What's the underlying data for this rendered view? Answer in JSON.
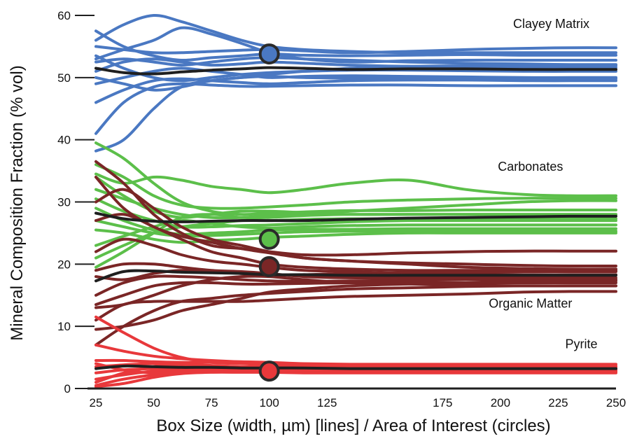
{
  "chart_data": {
    "type": "line",
    "title": "",
    "xlabel": "Box Size (width, µm) [lines] / Area of Interest (circles)",
    "ylabel": "Mineral Composition Fraction (% vol)",
    "xlim": [
      25,
      250
    ],
    "ylim": [
      0,
      60
    ],
    "xticks": [
      25,
      50,
      75,
      100,
      125,
      175,
      200,
      225,
      250
    ],
    "yticks": [
      0,
      10,
      20,
      30,
      40,
      50,
      60
    ],
    "x_samples": [
      25,
      37,
      50,
      62,
      75,
      88,
      100,
      115,
      135,
      160,
      185,
      210,
      230,
      250
    ],
    "colors": {
      "Clayey Matrix": "#4a78c2",
      "Carbonates": "#5cbf4a",
      "Organic Matter": "#7a2626",
      "Pyrite": "#e8383b",
      "mean": "#1f1f1f",
      "axis": "#1f1f1f"
    },
    "groups": [
      {
        "name": "Clayey Matrix",
        "label_x": 222,
        "label_y": 58,
        "circle": {
          "x": 100,
          "y": 53.8
        },
        "mean": [
          51.5,
          50.8,
          50.6,
          50.9,
          51.2,
          51.4,
          51.6,
          51.5,
          51.3,
          51.4,
          51.4,
          51.3,
          51.3,
          51.3
        ],
        "lines": [
          [
            57.5,
            55.0,
            53.5,
            52.8,
            53.2,
            53.5,
            53.8,
            53.6,
            53.5,
            53.6,
            53.7,
            53.6,
            53.6,
            53.6
          ],
          [
            55.0,
            54.5,
            54.0,
            54.0,
            54.2,
            54.4,
            54.5,
            54.3,
            54.0,
            54.2,
            54.5,
            54.7,
            54.8,
            54.8
          ],
          [
            53.0,
            54.5,
            56.0,
            58.0,
            57.0,
            55.5,
            54.0,
            53.0,
            52.5,
            52.7,
            52.8,
            52.8,
            52.8,
            52.8
          ],
          [
            52.5,
            53.0,
            52.5,
            52.0,
            52.5,
            53.0,
            53.2,
            53.0,
            52.8,
            52.5,
            52.3,
            52.2,
            52.1,
            52.1
          ],
          [
            51.0,
            52.5,
            53.0,
            52.5,
            52.0,
            52.2,
            52.5,
            52.3,
            52.0,
            51.8,
            51.7,
            51.6,
            51.6,
            51.6
          ],
          [
            49.0,
            50.0,
            51.0,
            51.5,
            51.0,
            50.5,
            50.0,
            50.2,
            50.3,
            50.2,
            50.1,
            50.0,
            50.0,
            50.0
          ],
          [
            46.0,
            48.0,
            49.5,
            49.8,
            49.5,
            49.2,
            49.0,
            49.2,
            49.5,
            49.6,
            49.6,
            49.5,
            49.5,
            49.5
          ],
          [
            41.0,
            46.0,
            48.5,
            49.0,
            48.8,
            48.6,
            48.6,
            48.7,
            48.8,
            48.8,
            48.7,
            48.7,
            48.7,
            48.7
          ],
          [
            38.2,
            40.0,
            45.0,
            48.5,
            49.5,
            50.0,
            50.2,
            50.0,
            49.9,
            49.8,
            49.8,
            49.8,
            49.8,
            49.8
          ],
          [
            50.0,
            49.0,
            48.0,
            48.5,
            49.5,
            50.0,
            50.5,
            51.0,
            51.5,
            51.8,
            51.9,
            51.9,
            51.9,
            51.9
          ],
          [
            53.5,
            51.5,
            50.0,
            49.5,
            50.0,
            50.5,
            50.8,
            51.0,
            51.2,
            51.2,
            51.1,
            51.0,
            51.0,
            51.0
          ],
          [
            56.0,
            58.5,
            60.0,
            59.0,
            57.5,
            56.0,
            55.0,
            54.5,
            54.2,
            54.0,
            54.0,
            54.0,
            54.0,
            54.0
          ]
        ]
      },
      {
        "name": "Carbonates",
        "label_x": 213,
        "label_y": 35,
        "circle": {
          "x": 100,
          "y": 24
        },
        "mean": [
          28.2,
          27.3,
          26.9,
          26.8,
          26.9,
          27.0,
          27.0,
          27.0,
          27.2,
          27.4,
          27.5,
          27.6,
          27.7,
          27.7
        ],
        "lines": [
          [
            39.5,
            37.0,
            33.0,
            30.0,
            28.5,
            28.0,
            28.2,
            28.4,
            28.6,
            28.6,
            28.7,
            28.7,
            28.7,
            28.7
          ],
          [
            36.0,
            34.0,
            31.0,
            29.5,
            29.0,
            29.0,
            29.2,
            29.5,
            30.0,
            30.3,
            30.5,
            30.6,
            30.6,
            30.6
          ],
          [
            34.5,
            33.0,
            34.0,
            33.5,
            32.5,
            32.0,
            31.5,
            32.0,
            33.0,
            33.5,
            32.0,
            31.2,
            31.0,
            31.0
          ],
          [
            32.0,
            30.5,
            29.0,
            28.0,
            27.5,
            27.5,
            27.8,
            28.0,
            28.5,
            29.0,
            29.5,
            30.0,
            30.2,
            30.2
          ],
          [
            30.5,
            28.5,
            27.0,
            26.0,
            26.0,
            26.2,
            26.3,
            26.5,
            26.8,
            27.0,
            27.0,
            27.0,
            27.0,
            27.0
          ],
          [
            29.0,
            27.0,
            25.5,
            24.8,
            25.0,
            25.2,
            25.5,
            25.6,
            25.6,
            25.7,
            25.7,
            25.7,
            25.7,
            25.7
          ],
          [
            27.0,
            26.0,
            25.0,
            24.5,
            24.6,
            24.8,
            25.0,
            25.2,
            25.3,
            25.3,
            25.3,
            25.3,
            25.3,
            25.3
          ],
          [
            25.5,
            25.0,
            24.0,
            23.5,
            23.8,
            24.0,
            24.3,
            24.5,
            24.8,
            25.0,
            25.0,
            25.0,
            25.0,
            25.0
          ],
          [
            23.0,
            24.5,
            26.0,
            27.0,
            26.5,
            26.0,
            25.8,
            26.0,
            26.2,
            26.3,
            26.3,
            26.3,
            26.3,
            26.3
          ],
          [
            21.0,
            23.0,
            25.0,
            26.0,
            26.5,
            27.0,
            27.0,
            27.2,
            27.3,
            27.3,
            27.3,
            27.3,
            27.3,
            27.3
          ],
          [
            19.5,
            22.0,
            25.0,
            27.5,
            28.0,
            27.5,
            27.5,
            27.8,
            28.0,
            28.0,
            28.0,
            28.0,
            28.0,
            28.0
          ],
          [
            34.0,
            31.0,
            28.5,
            27.5,
            28.0,
            28.5,
            28.5,
            28.3,
            28.0,
            28.0,
            28.0,
            28.0,
            28.0,
            28.0
          ]
        ]
      },
      {
        "name": "Organic Matter",
        "label_x": 213,
        "label_y": 13,
        "circle": {
          "x": 100,
          "y": 19.6
        },
        "mean": [
          17.3,
          18.8,
          18.9,
          18.7,
          18.6,
          18.5,
          18.3,
          18.3,
          18.2,
          18.2,
          18.2,
          18.2,
          18.2,
          18.2
        ],
        "lines": [
          [
            36.5,
            33.0,
            28.0,
            25.0,
            23.0,
            22.5,
            22.0,
            21.5,
            21.5,
            21.8,
            22.0,
            22.1,
            22.1,
            22.1
          ],
          [
            34.0,
            29.0,
            26.0,
            24.5,
            23.5,
            22.5,
            21.8,
            21.0,
            20.5,
            20.2,
            20.0,
            19.8,
            19.7,
            19.7
          ],
          [
            30.0,
            32.0,
            29.0,
            26.0,
            24.0,
            23.0,
            22.0,
            21.0,
            20.5,
            20.0,
            19.5,
            19.3,
            19.2,
            19.2
          ],
          [
            27.0,
            28.0,
            26.0,
            24.0,
            22.0,
            21.0,
            20.0,
            19.5,
            19.2,
            19.0,
            19.0,
            19.0,
            19.0,
            19.0
          ],
          [
            22.0,
            24.0,
            23.0,
            21.5,
            20.5,
            20.0,
            19.5,
            19.0,
            18.8,
            18.5,
            18.4,
            18.3,
            18.3,
            18.3
          ],
          [
            19.0,
            20.0,
            20.0,
            19.5,
            19.0,
            18.8,
            18.5,
            18.0,
            17.8,
            17.8,
            17.8,
            17.8,
            17.8,
            17.8
          ],
          [
            15.0,
            17.0,
            18.0,
            18.0,
            17.8,
            17.5,
            17.3,
            17.2,
            17.3,
            17.4,
            17.5,
            17.5,
            17.5,
            17.5
          ],
          [
            13.5,
            15.0,
            16.5,
            17.0,
            17.0,
            16.8,
            16.8,
            16.9,
            17.0,
            17.0,
            17.0,
            17.0,
            17.0,
            17.0
          ],
          [
            13.0,
            13.5,
            15.0,
            16.5,
            17.5,
            18.0,
            18.0,
            17.5,
            17.0,
            16.8,
            16.6,
            16.5,
            16.5,
            16.5
          ],
          [
            11.0,
            13.5,
            14.0,
            14.0,
            14.0,
            14.0,
            14.2,
            14.5,
            14.8,
            15.0,
            15.2,
            15.5,
            15.6,
            15.6
          ],
          [
            7.0,
            10.0,
            12.5,
            14.0,
            14.5,
            15.0,
            15.3,
            15.6,
            16.0,
            16.2,
            16.4,
            16.5,
            16.5,
            16.5
          ],
          [
            9.5,
            10.0,
            11.0,
            12.5,
            13.5,
            14.5,
            15.5,
            16.0,
            16.5,
            16.8,
            17.0,
            17.2,
            17.3,
            17.3
          ],
          [
            18.0,
            17.5,
            18.5,
            19.0,
            18.8,
            18.5,
            18.2,
            18.3,
            18.5,
            18.6,
            18.7,
            18.8,
            18.8,
            18.8
          ]
        ]
      },
      {
        "name": "Pyrite",
        "label_x": 235,
        "label_y": 6.5,
        "circle": {
          "x": 100,
          "y": 2.8
        },
        "mean": [
          3.2,
          3.6,
          3.5,
          3.4,
          3.4,
          3.3,
          3.3,
          3.3,
          3.2,
          3.2,
          3.2,
          3.2,
          3.2,
          3.2
        ],
        "lines": [
          [
            11.5,
            9.0,
            6.5,
            5.0,
            4.2,
            4.0,
            3.8,
            3.7,
            3.6,
            3.6,
            3.6,
            3.6,
            3.6,
            3.6
          ],
          [
            7.0,
            6.0,
            5.2,
            4.8,
            4.5,
            4.3,
            4.2,
            4.0,
            3.9,
            3.9,
            3.9,
            3.9,
            3.9,
            3.9
          ],
          [
            4.5,
            4.5,
            4.3,
            4.2,
            4.2,
            4.1,
            4.0,
            3.8,
            3.7,
            3.6,
            3.5,
            3.5,
            3.5,
            3.5
          ],
          [
            3.5,
            3.8,
            4.0,
            3.9,
            3.7,
            3.5,
            3.5,
            3.4,
            3.3,
            3.3,
            3.3,
            3.3,
            3.3,
            3.3
          ],
          [
            2.5,
            3.0,
            3.2,
            3.2,
            3.2,
            3.1,
            3.0,
            3.0,
            3.0,
            3.0,
            3.0,
            3.0,
            3.0,
            3.0
          ],
          [
            1.5,
            2.2,
            2.8,
            3.0,
            3.0,
            2.9,
            2.8,
            2.8,
            2.8,
            2.8,
            2.8,
            2.8,
            2.8,
            2.8
          ],
          [
            0.5,
            1.5,
            2.2,
            2.6,
            2.7,
            2.7,
            2.6,
            2.6,
            2.7,
            2.7,
            2.7,
            2.7,
            2.7,
            2.7
          ],
          [
            0.3,
            0.8,
            1.8,
            2.4,
            2.6,
            2.6,
            2.6,
            2.5,
            2.5,
            2.5,
            2.5,
            2.5,
            2.5,
            2.5
          ],
          [
            4.0,
            3.0,
            2.5,
            2.7,
            3.0,
            3.2,
            3.3,
            3.3,
            3.3,
            3.3,
            3.3,
            3.3,
            3.3,
            3.3
          ],
          [
            1.0,
            2.5,
            3.5,
            3.8,
            3.6,
            3.4,
            3.2,
            3.1,
            3.1,
            3.1,
            3.1,
            3.1,
            3.1,
            3.1
          ]
        ]
      }
    ]
  }
}
